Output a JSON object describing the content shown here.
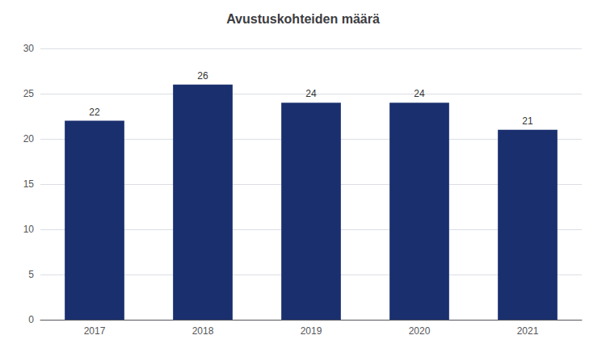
{
  "chart_data": {
    "type": "bar",
    "title": "Avustuskohteiden määrä",
    "categories": [
      "2017",
      "2018",
      "2019",
      "2020",
      "2021"
    ],
    "values": [
      22,
      26,
      24,
      24,
      21
    ],
    "color": "#1a2f6e",
    "ylim": [
      0,
      30
    ],
    "yticks": [
      0,
      5,
      10,
      15,
      20,
      25,
      30
    ],
    "grid": true,
    "data_labels": true
  }
}
